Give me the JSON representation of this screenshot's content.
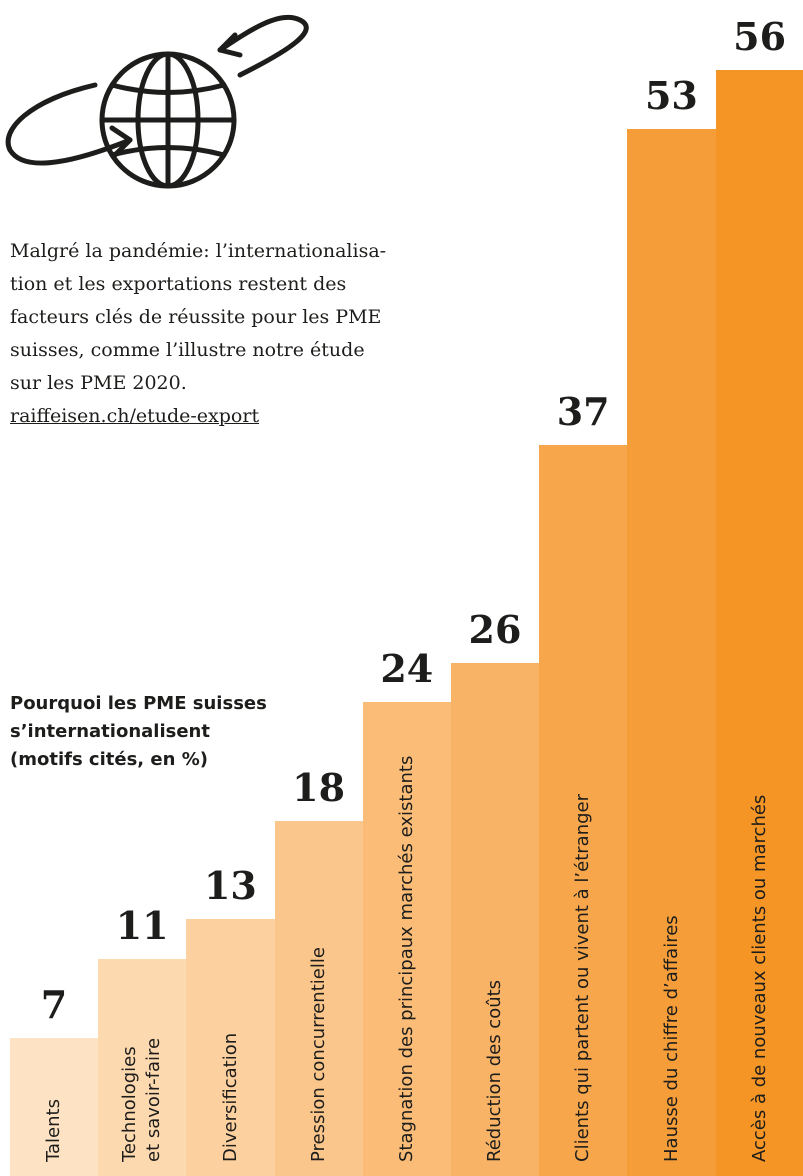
{
  "chart_data": {
    "type": "bar",
    "title": [
      "Pourquoi les PME suisses",
      "s’internationalisent",
      "(motifs cités, en %)"
    ],
    "intro": [
      "Malgré la pandémie: l’internationalisa-",
      "tion et les exportations restent des",
      "facteurs clés de réussite pour les PME",
      "suisses, comme l’illustre notre étude",
      "sur les PME 2020."
    ],
    "link": "raiffeisen.ch/etude-export",
    "categories": [
      "Talents",
      "Technologies\net savoir-faire",
      "Diversification",
      "Pression concurrentielle",
      "Stagnation des principaux marchés existants",
      "Réduction des coûts",
      "Clients qui partent ou vivent à l’étranger",
      "Hausse du chiffre d’affaires",
      "Accès à de nouveaux clients ou marchés"
    ],
    "values": [
      7,
      11,
      13,
      18,
      24,
      26,
      37,
      53,
      56
    ],
    "colors": [
      "#fde3c4",
      "#fdd9b0",
      "#fcd09f",
      "#fbc68b",
      "#fabc77",
      "#f9b367",
      "#f7a64b",
      "#f59d39",
      "#f49526"
    ]
  }
}
